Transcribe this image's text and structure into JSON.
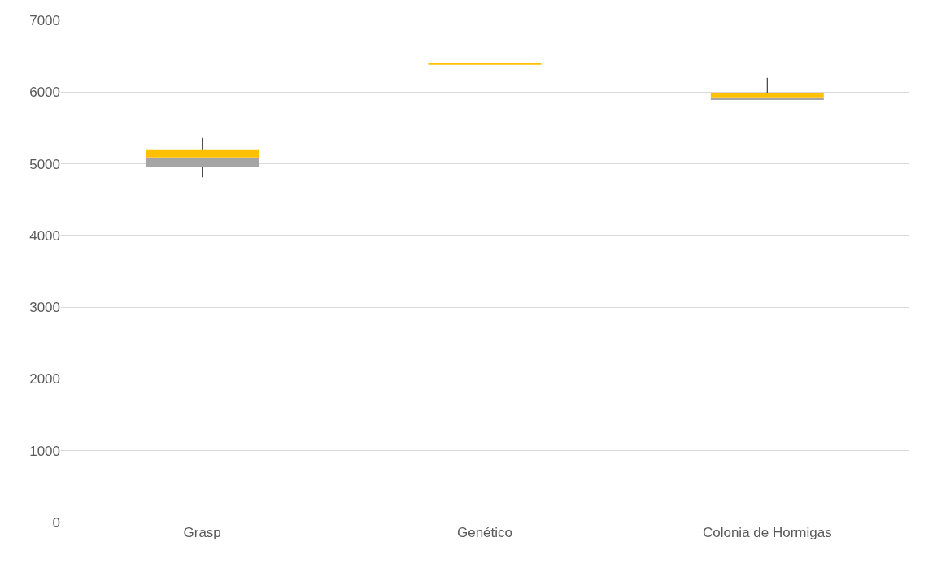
{
  "chart_data": {
    "type": "box",
    "categories": [
      "Grasp",
      "Genético",
      "Colonia de Hormigas"
    ],
    "boxes": [
      {
        "low": 4810,
        "q1": 4950,
        "median": 5090,
        "q3": 5190,
        "high": 5360
      },
      {
        "low": 6390,
        "q1": 6390,
        "median": 6390,
        "q3": 6390,
        "high": 6390
      },
      {
        "low": 5900,
        "q1": 5900,
        "median": 5915,
        "q3": 5990,
        "high": 6200
      }
    ],
    "color": "#ffc000",
    "colors": [
      "#a5a5a5",
      "#ffc000",
      "#a5a5a5"
    ],
    "ylim": [
      0,
      7000
    ],
    "yticks": [
      0,
      1000,
      2000,
      3000,
      4000,
      5000,
      6000,
      7000
    ],
    "grid": "y"
  }
}
